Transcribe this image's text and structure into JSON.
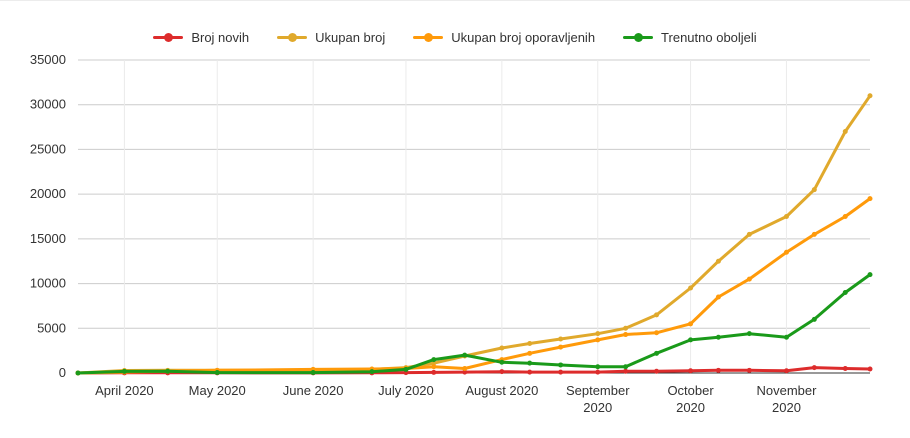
{
  "chart_data": {
    "type": "line",
    "ylim": [
      0,
      35000
    ],
    "y_ticks": [
      "0",
      "5000",
      "10000",
      "15000",
      "20000",
      "25000",
      "30000",
      "35000"
    ],
    "x_tick_labels": [
      [
        "April 2020"
      ],
      [
        "May 2020"
      ],
      [
        "June 2020"
      ],
      [
        "July 2020"
      ],
      [
        "August 2020"
      ],
      [
        "September",
        "2020"
      ],
      [
        "October",
        "2020"
      ],
      [
        "November",
        "2020"
      ]
    ],
    "grid": true,
    "legend_position": "top-center",
    "x": [
      "2020-03-17",
      "2020-04-01",
      "2020-04-15",
      "2020-05-01",
      "2020-06-01",
      "2020-06-20",
      "2020-07-01",
      "2020-07-10",
      "2020-07-20",
      "2020-08-01",
      "2020-08-10",
      "2020-08-20",
      "2020-09-01",
      "2020-09-10",
      "2020-09-20",
      "2020-10-01",
      "2020-10-10",
      "2020-10-20",
      "2020-11-01",
      "2020-11-10",
      "2020-11-20",
      "2020-11-28"
    ],
    "series": [
      {
        "name": "Broj novih",
        "color": "#dd2c2c",
        "values": [
          0,
          20,
          20,
          20,
          15,
          20,
          40,
          70,
          100,
          150,
          100,
          100,
          100,
          200,
          200,
          250,
          300,
          300,
          250,
          600,
          500,
          450
        ]
      },
      {
        "name": "Ukupan broj",
        "color": "#e0a92c",
        "values": [
          0,
          280,
          300,
          300,
          300,
          400,
          600,
          1100,
          1900,
          2800,
          3300,
          3800,
          4400,
          5000,
          6500,
          9500,
          12500,
          15500,
          17500,
          20500,
          27000,
          31000
        ]
      },
      {
        "name": "Ukupan broj oporavljenih",
        "color": "#ff9a0a",
        "values": [
          0,
          100,
          200,
          300,
          400,
          450,
          500,
          700,
          500,
          1500,
          2200,
          2900,
          3700,
          4300,
          4500,
          5500,
          8500,
          10500,
          13500,
          15500,
          17500,
          19500
        ]
      },
      {
        "name": "Trenutno oboljeli",
        "color": "#1a9a1a",
        "values": [
          0,
          180,
          200,
          50,
          50,
          150,
          400,
          1500,
          2000,
          1200,
          1100,
          900,
          700,
          700,
          2200,
          3700,
          4000,
          4400,
          4000,
          6000,
          9000,
          11000
        ]
      }
    ]
  }
}
